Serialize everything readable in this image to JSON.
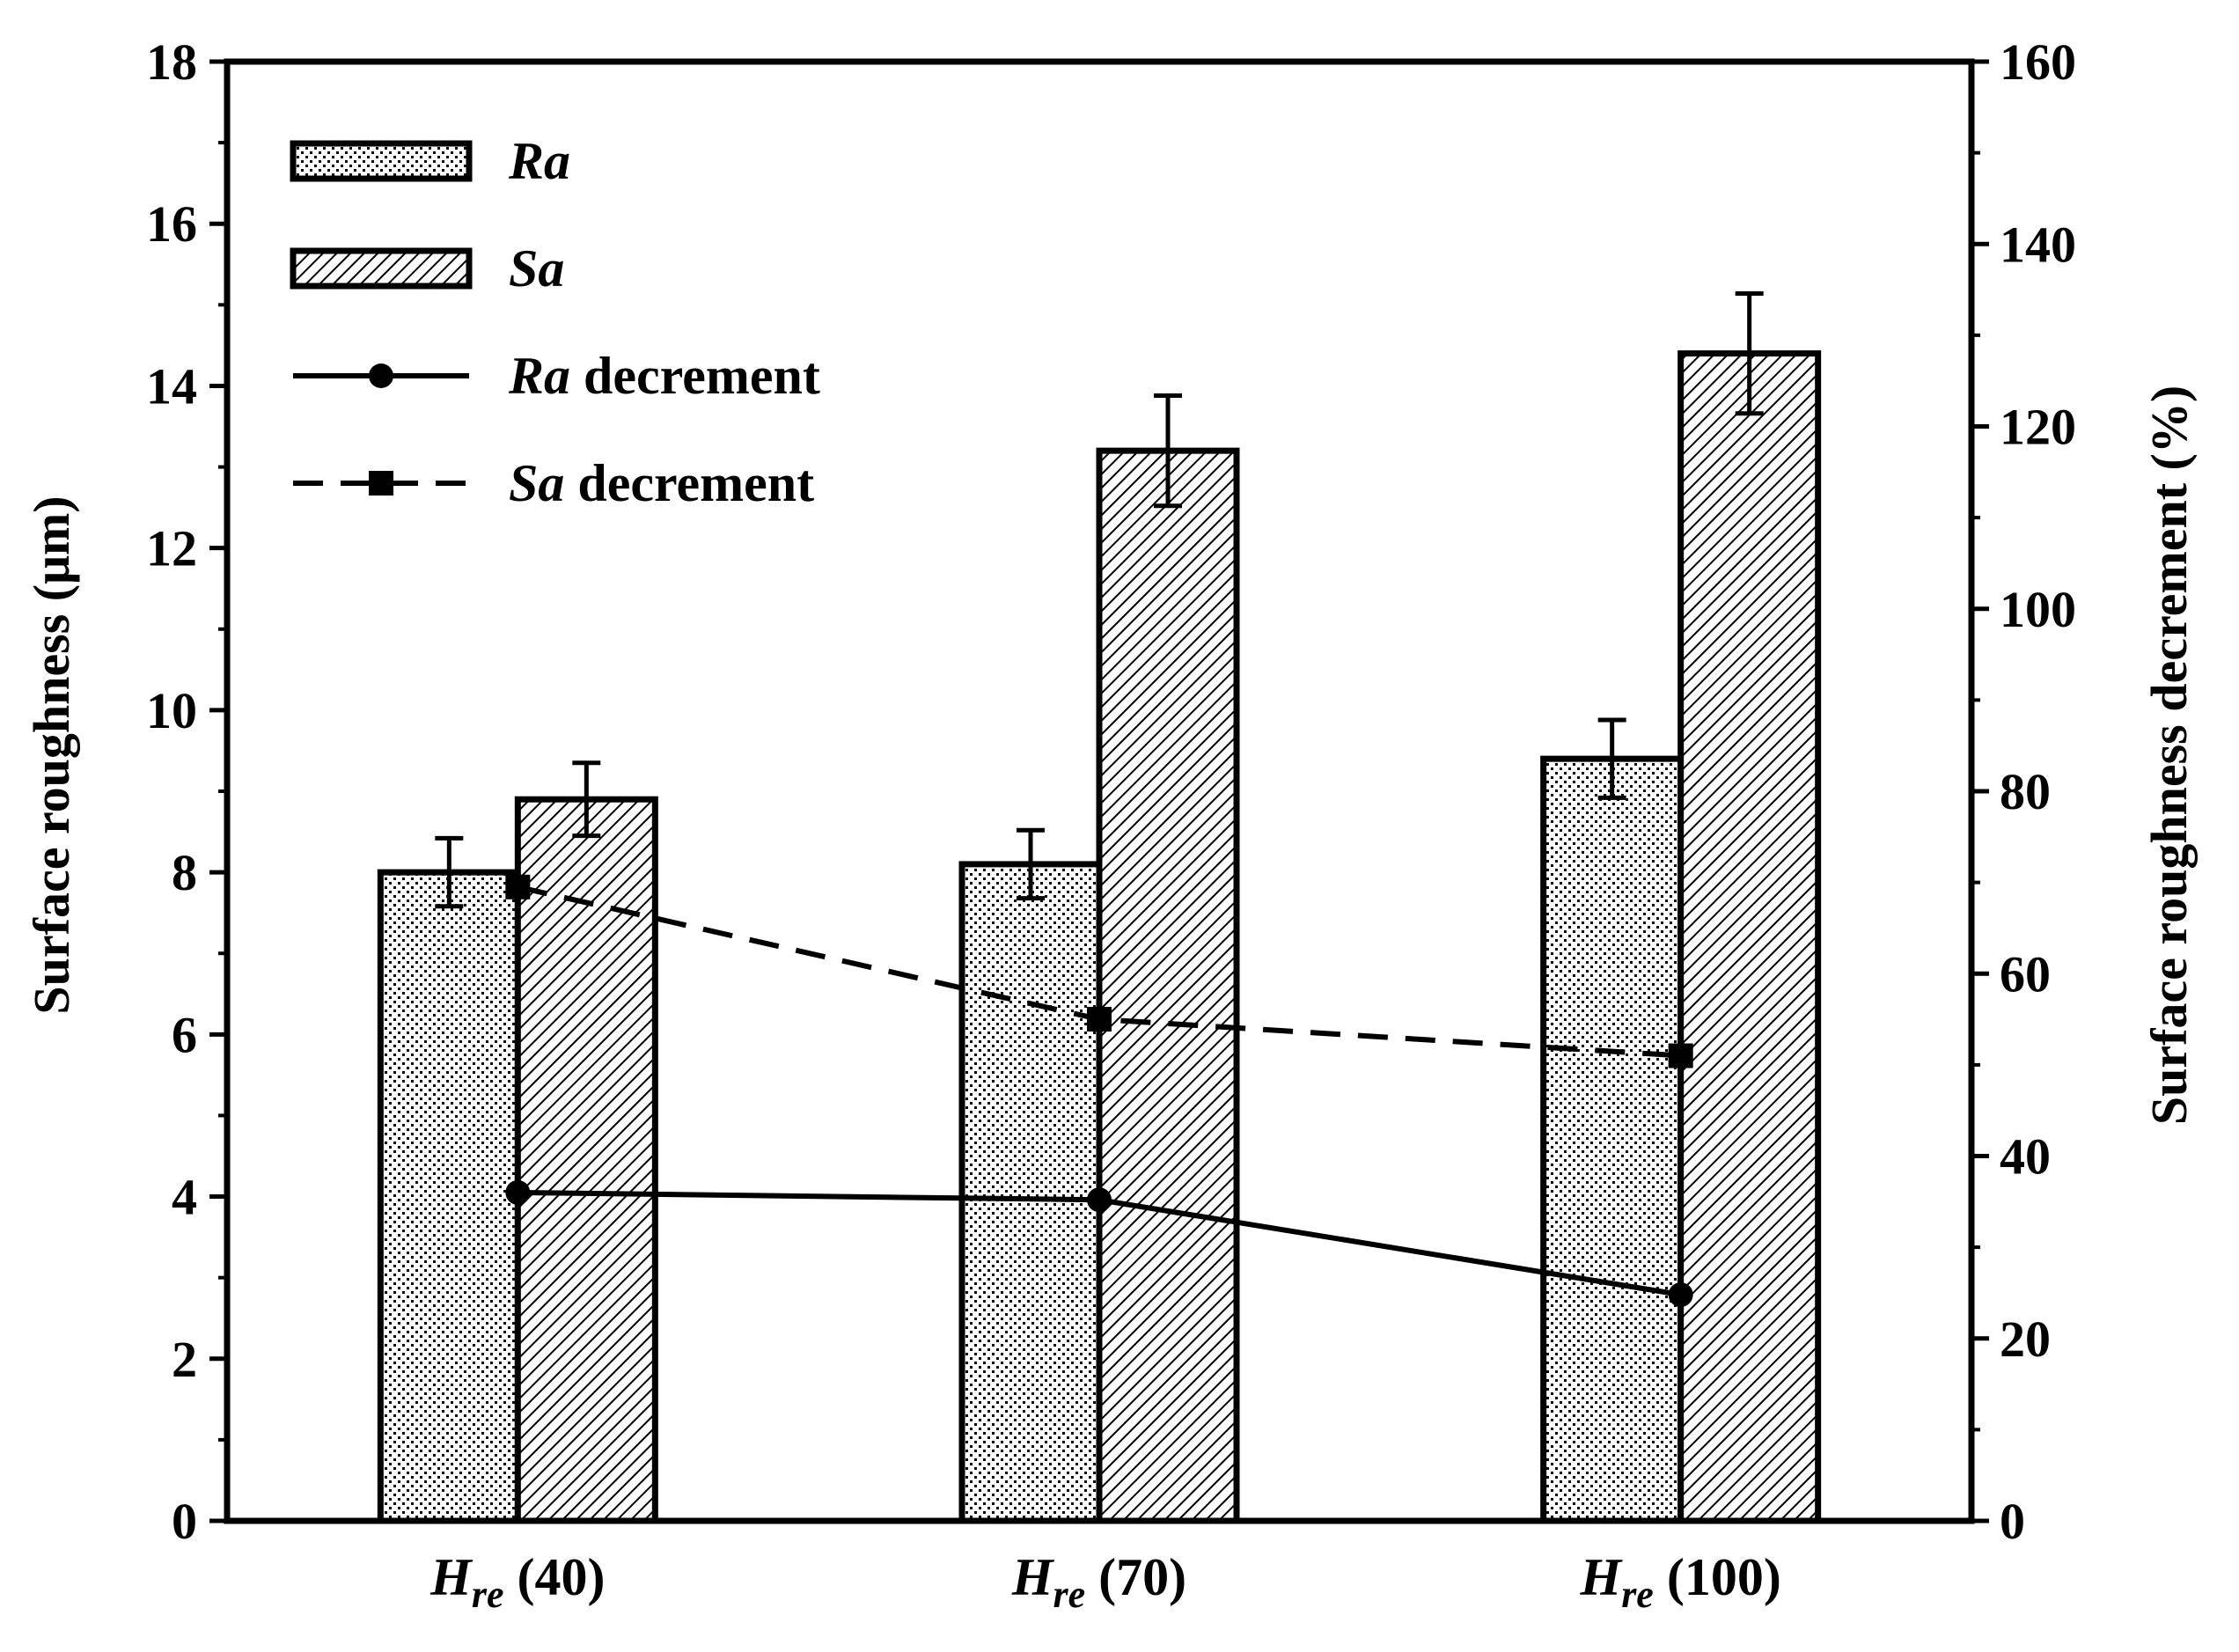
{
  "chart_data": {
    "type": "bar",
    "categories": [
      {
        "base": "H",
        "sub": "re",
        "value": "(40)"
      },
      {
        "base": "H",
        "sub": "re",
        "value": "(70)"
      },
      {
        "base": "H",
        "sub": "re",
        "value": "(100)"
      }
    ],
    "series": [
      {
        "name": "Ra",
        "kind": "bar",
        "pattern": "dots",
        "axis": "left",
        "values": [
          8.0,
          8.1,
          9.4
        ],
        "errors": [
          0.42,
          0.42,
          0.48
        ]
      },
      {
        "name": "Sa",
        "kind": "bar",
        "pattern": "hatch",
        "axis": "left",
        "values": [
          8.9,
          13.2,
          14.4
        ],
        "errors": [
          0.45,
          0.68,
          0.74
        ]
      },
      {
        "name": "Ra decrement",
        "kind": "line",
        "style": "solid",
        "marker": "circle",
        "axis": "right",
        "values": [
          36.0,
          35.2,
          24.8
        ]
      },
      {
        "name": "Sa decrement",
        "kind": "line",
        "style": "dashed",
        "marker": "square",
        "axis": "right",
        "values": [
          69.5,
          55.0,
          51.0
        ]
      }
    ],
    "legend": [
      {
        "italic": "Ra",
        "rest": ""
      },
      {
        "italic": "Sa",
        "rest": ""
      },
      {
        "italic": "Ra",
        "rest": " decrement"
      },
      {
        "italic": "Sa",
        "rest": " decrement"
      }
    ],
    "ylabel": "Surface roughness (μm)",
    "y2label": "Surface roughness decrement (%)",
    "ylim": [
      0,
      18
    ],
    "y2lim": [
      0,
      160
    ],
    "yticks": [
      "0",
      "2",
      "4",
      "6",
      "8",
      "10",
      "12",
      "14",
      "16",
      "18"
    ],
    "y2ticks": [
      "0",
      "20",
      "40",
      "60",
      "80",
      "100",
      "120",
      "140",
      "160"
    ],
    "legend_position": "top-left",
    "grid": false,
    "colors": {
      "ink": "#000000",
      "bar_fill": "#ffffff"
    }
  }
}
